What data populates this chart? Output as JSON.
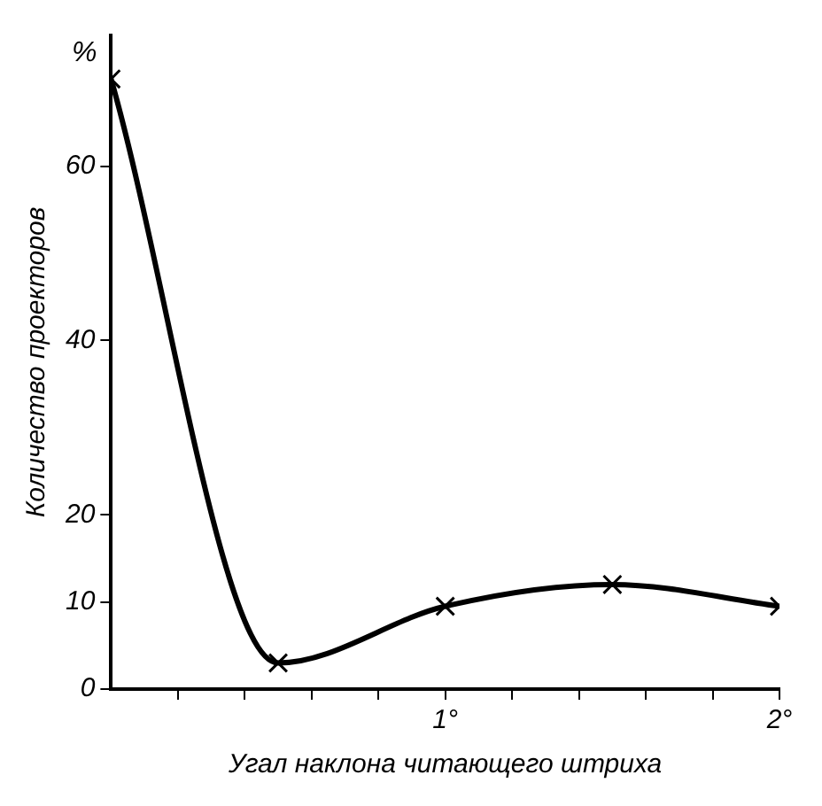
{
  "chart_data": {
    "type": "line",
    "xlabel": "Угал наклона читающего штриха",
    "ylabel": "Количество проекторов",
    "annotations": [
      "%"
    ],
    "x": [
      0,
      0.5,
      1,
      1.5,
      2
    ],
    "series": [
      {
        "color": "#000000",
        "values": [
          70,
          3,
          9.5,
          12,
          9.5
        ]
      }
    ],
    "xlim": [
      0,
      2
    ],
    "xticks": [
      {
        "value": 0.2,
        "label": null
      },
      {
        "value": 0.4,
        "label": null
      },
      {
        "value": 0.6,
        "label": null
      },
      {
        "value": 0.8,
        "label": null
      },
      {
        "value": 1,
        "label": "1°"
      },
      {
        "value": 1.2,
        "label": null
      },
      {
        "value": 1.4,
        "label": null
      },
      {
        "value": 1.6,
        "label": null
      },
      {
        "value": 1.8,
        "label": null
      },
      {
        "value": 2,
        "label": "2°"
      }
    ],
    "ylim": [
      0,
      75
    ],
    "yticks": [
      0,
      10,
      20,
      40,
      60
    ],
    "grid": false,
    "legend": false,
    "marker": "cross",
    "line_style": "solid"
  }
}
